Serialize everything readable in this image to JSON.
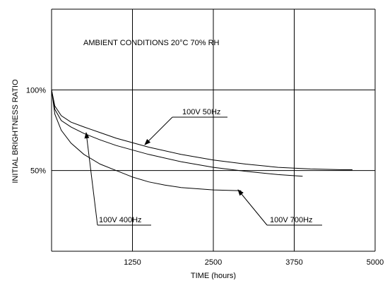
{
  "chart_data": {
    "type": "line",
    "title": "",
    "note": "AMBIENT CONDITIONS 20°C 70% RH",
    "xlabel": "TIME (hours)",
    "ylabel": "INITIAL BRIGHTNESS RATIO",
    "xlim": [
      0,
      5000
    ],
    "ylim": [
      0,
      150
    ],
    "x_ticks": [
      {
        "value": 1250,
        "label": "1250"
      },
      {
        "value": 2500,
        "label": "2500"
      },
      {
        "value": 3750,
        "label": "3750"
      },
      {
        "value": 5000,
        "label": "5000"
      }
    ],
    "y_ticks": [
      {
        "value": 100,
        "label": "100%"
      },
      {
        "value": 50,
        "label": "50%"
      }
    ],
    "grid": true,
    "series": [
      {
        "name": "100V 50Hz",
        "x": [
          0,
          50,
          150,
          300,
          500,
          750,
          1000,
          1500,
          2000,
          2500,
          3000,
          3500,
          4000,
          4500,
          4650
        ],
        "y": [
          100,
          90,
          84,
          80,
          77,
          73.5,
          70,
          64.5,
          60,
          56.5,
          54,
          52,
          51,
          50.5,
          50.5
        ]
      },
      {
        "name": "100V 400Hz",
        "x": [
          0,
          50,
          150,
          300,
          500,
          750,
          1000,
          1500,
          2000,
          2500,
          3000,
          3500,
          3880
        ],
        "y": [
          100,
          88,
          81,
          77,
          73,
          69,
          65.5,
          60,
          55.5,
          52,
          49.5,
          47.5,
          46.5
        ]
      },
      {
        "name": "100V 700Hz",
        "x": [
          0,
          50,
          150,
          300,
          500,
          750,
          1000,
          1250,
          1500,
          1750,
          2000,
          2500,
          2930
        ],
        "y": [
          100,
          85,
          75,
          67,
          60,
          54,
          50,
          46,
          43,
          41,
          39.5,
          38,
          37.5
        ]
      }
    ],
    "annotations": [
      {
        "text": "100V 50Hz",
        "series": "100V 50Hz"
      },
      {
        "text": "100V 400Hz",
        "series": "100V 400Hz"
      },
      {
        "text": "100V 700Hz",
        "series": "100V 700Hz"
      }
    ]
  }
}
